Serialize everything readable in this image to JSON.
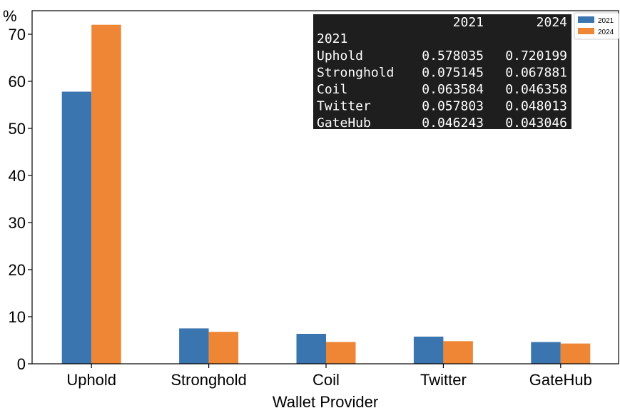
{
  "chart_data": {
    "type": "bar",
    "xlabel": "Wallet Provider",
    "ylabel": "%",
    "categories": [
      "Uphold",
      "Stronghold",
      "Coil",
      "Twitter",
      "GateHub"
    ],
    "series": [
      {
        "name": "2021",
        "values": [
          57.8035,
          7.5145,
          6.3584,
          5.7803,
          4.6243
        ],
        "color": "#3b75af"
      },
      {
        "name": "2024",
        "values": [
          72.0199,
          6.7881,
          4.6358,
          4.8013,
          4.3046
        ],
        "color": "#ef8636"
      }
    ],
    "ylim": [
      0,
      75
    ],
    "yticks": [
      0,
      10,
      20,
      30,
      40,
      50,
      60,
      70
    ],
    "grid": false,
    "legend": {
      "placement": "top-right",
      "entries": [
        "2021",
        "2024"
      ]
    },
    "inset_table": {
      "placement": "top-right",
      "background": "#1e1e1e",
      "text_color": "#ffffff",
      "columns": [
        "2021",
        "2024"
      ],
      "index_name": "2021",
      "rows": [
        {
          "label": "Uphold",
          "values": [
            "0.578035",
            "0.720199"
          ]
        },
        {
          "label": "Stronghold",
          "values": [
            "0.075145",
            "0.067881"
          ]
        },
        {
          "label": "Coil",
          "values": [
            "0.063584",
            "0.046358"
          ]
        },
        {
          "label": "Twitter",
          "values": [
            "0.057803",
            "0.048013"
          ]
        },
        {
          "label": "GateHub",
          "values": [
            "0.046243",
            "0.043046"
          ]
        }
      ]
    }
  }
}
